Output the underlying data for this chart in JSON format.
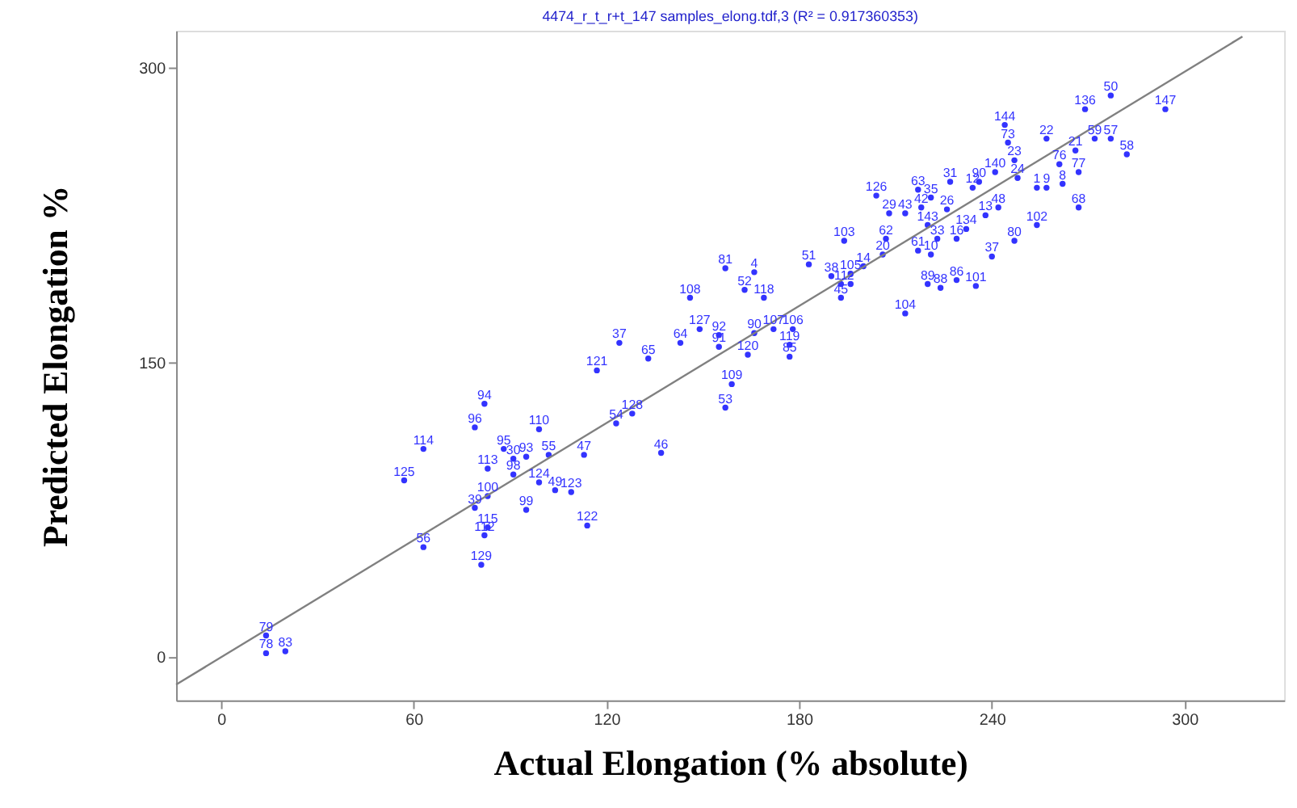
{
  "chart_data": {
    "type": "scatter",
    "title": "4474_r_t_r+t_147 samples_elong.tdf,3  (R² = 0.917360353)",
    "xlabel": "Actual Elongation (% absolute)",
    "ylabel": "Predicted Elongation %",
    "xlim": [
      -14,
      331
    ],
    "ylim": [
      -22,
      319
    ],
    "xticks": [
      0,
      60,
      120,
      180,
      240,
      300
    ],
    "yticks": [
      0,
      150,
      300
    ],
    "grid": false,
    "series": [
      {
        "color": "#3333ff",
        "marker": "circle",
        "x": [
          14,
          14,
          20,
          63,
          57,
          63,
          82,
          79,
          83,
          83,
          79,
          83,
          82,
          81,
          99,
          88,
          91,
          95,
          102,
          91,
          99,
          104,
          109,
          95,
          114,
          113,
          137,
          123,
          128,
          117,
          124,
          133,
          143,
          146,
          149,
          155,
          155,
          159,
          157,
          157,
          166,
          163,
          169,
          166,
          164,
          172,
          178,
          177,
          177,
          183,
          193,
          190,
          196,
          200,
          193,
          196,
          194,
          213,
          206,
          207,
          204,
          208,
          213,
          217,
          221,
          218,
          227,
          234,
          226,
          220,
          232,
          229,
          223,
          217,
          221,
          220,
          224,
          229,
          235,
          240,
          241,
          236,
          248,
          238,
          242,
          247,
          254,
          267,
          254,
          257,
          262,
          267,
          261,
          266,
          245,
          247,
          282,
          277,
          272,
          269,
          277,
          294,
          244,
          257
        ],
        "values": [
          11,
          2,
          3,
          56,
          90,
          106,
          129,
          117,
          96,
          82,
          76,
          66,
          62,
          47,
          116,
          106,
          101,
          102,
          103,
          93,
          89,
          85,
          84,
          75,
          67,
          103,
          104,
          119,
          124,
          146,
          160,
          152,
          160,
          183,
          167,
          164,
          158,
          139,
          127,
          198,
          196,
          187,
          183,
          165,
          154,
          167,
          167,
          159,
          153,
          200,
          183,
          194,
          195,
          199,
          190,
          190,
          212,
          175,
          205,
          213,
          235,
          226,
          226,
          238,
          234,
          229,
          242,
          239,
          228,
          220,
          218,
          213,
          213,
          207,
          205,
          190,
          188,
          192,
          189,
          204,
          247,
          242,
          244,
          225,
          229,
          212,
          220,
          229,
          239,
          239,
          241,
          247,
          251,
          258,
          262,
          253,
          256,
          264,
          264,
          279,
          286,
          279,
          271,
          264
        ]
      },
      {
        "type": "line",
        "color": "#808080",
        "x": [
          -14,
          318
        ],
        "values": [
          -14,
          316
        ]
      }
    ],
    "annotations": [
      {
        "text": "79",
        "x": 14,
        "y": 11
      },
      {
        "text": "78",
        "x": 14,
        "y": 2
      },
      {
        "text": "83",
        "x": 20,
        "y": 3
      },
      {
        "text": "56",
        "x": 63,
        "y": 56
      },
      {
        "text": "125",
        "x": 57,
        "y": 90
      },
      {
        "text": "114",
        "x": 63,
        "y": 106
      },
      {
        "text": "94",
        "x": 82,
        "y": 129
      },
      {
        "text": "96",
        "x": 79,
        "y": 117
      },
      {
        "text": "113",
        "x": 83,
        "y": 96
      },
      {
        "text": "100",
        "x": 83,
        "y": 82
      },
      {
        "text": "39",
        "x": 79,
        "y": 76
      },
      {
        "text": "115",
        "x": 83,
        "y": 66
      },
      {
        "text": "112",
        "x": 82,
        "y": 62
      },
      {
        "text": "129",
        "x": 81,
        "y": 47
      },
      {
        "text": "110",
        "x": 99,
        "y": 116
      },
      {
        "text": "95",
        "x": 88,
        "y": 106
      },
      {
        "text": "30",
        "x": 91,
        "y": 101
      },
      {
        "text": "93",
        "x": 95,
        "y": 102
      },
      {
        "text": "55",
        "x": 102,
        "y": 103
      },
      {
        "text": "98",
        "x": 91,
        "y": 93
      },
      {
        "text": "124",
        "x": 99,
        "y": 89
      },
      {
        "text": "49",
        "x": 104,
        "y": 85
      },
      {
        "text": "123",
        "x": 109,
        "y": 84
      },
      {
        "text": "99",
        "x": 95,
        "y": 75
      },
      {
        "text": "122",
        "x": 114,
        "y": 67
      },
      {
        "text": "47",
        "x": 113,
        "y": 103
      },
      {
        "text": "46",
        "x": 137,
        "y": 104
      },
      {
        "text": "54",
        "x": 123,
        "y": 119
      },
      {
        "text": "128",
        "x": 128,
        "y": 124
      },
      {
        "text": "121",
        "x": 117,
        "y": 146
      },
      {
        "text": "37",
        "x": 124,
        "y": 160
      },
      {
        "text": "65",
        "x": 133,
        "y": 152
      },
      {
        "text": "64",
        "x": 143,
        "y": 160
      },
      {
        "text": "108",
        "x": 146,
        "y": 183
      },
      {
        "text": "127",
        "x": 149,
        "y": 167
      },
      {
        "text": "92",
        "x": 155,
        "y": 164
      },
      {
        "text": "91",
        "x": 155,
        "y": 158
      },
      {
        "text": "109",
        "x": 159,
        "y": 139
      },
      {
        "text": "53",
        "x": 157,
        "y": 127
      },
      {
        "text": "81",
        "x": 157,
        "y": 198
      },
      {
        "text": "4",
        "x": 166,
        "y": 196
      },
      {
        "text": "52",
        "x": 163,
        "y": 187
      },
      {
        "text": "118",
        "x": 169,
        "y": 183
      },
      {
        "text": "90",
        "x": 166,
        "y": 165
      },
      {
        "text": "120",
        "x": 164,
        "y": 154
      },
      {
        "text": "107",
        "x": 172,
        "y": 167
      },
      {
        "text": "106",
        "x": 178,
        "y": 167
      },
      {
        "text": "119",
        "x": 177,
        "y": 159
      },
      {
        "text": "85",
        "x": 177,
        "y": 153
      },
      {
        "text": "51",
        "x": 183,
        "y": 200
      },
      {
        "text": "45",
        "x": 193,
        "y": 183
      },
      {
        "text": "38",
        "x": 190,
        "y": 194
      },
      {
        "text": "105",
        "x": 196,
        "y": 195
      },
      {
        "text": "14",
        "x": 200,
        "y": 199
      },
      {
        "text": "11",
        "x": 193,
        "y": 190
      },
      {
        "text": "2",
        "x": 196,
        "y": 190
      },
      {
        "text": "103",
        "x": 194,
        "y": 212
      },
      {
        "text": "104",
        "x": 213,
        "y": 175
      },
      {
        "text": "20",
        "x": 206,
        "y": 205
      },
      {
        "text": "62",
        "x": 207,
        "y": 213
      },
      {
        "text": "126",
        "x": 204,
        "y": 235
      },
      {
        "text": "29",
        "x": 208,
        "y": 226
      },
      {
        "text": "43",
        "x": 213,
        "y": 226
      },
      {
        "text": "63",
        "x": 217,
        "y": 238
      },
      {
        "text": "35",
        "x": 221,
        "y": 234
      },
      {
        "text": "42",
        "x": 218,
        "y": 229
      },
      {
        "text": "31",
        "x": 227,
        "y": 242
      },
      {
        "text": "12",
        "x": 234,
        "y": 239
      },
      {
        "text": "26",
        "x": 226,
        "y": 228
      },
      {
        "text": "143",
        "x": 220,
        "y": 220
      },
      {
        "text": "134",
        "x": 232,
        "y": 218
      },
      {
        "text": "16",
        "x": 229,
        "y": 213
      },
      {
        "text": "33",
        "x": 223,
        "y": 213
      },
      {
        "text": "61",
        "x": 217,
        "y": 207
      },
      {
        "text": "10",
        "x": 221,
        "y": 205
      },
      {
        "text": "89",
        "x": 220,
        "y": 190
      },
      {
        "text": "88",
        "x": 224,
        "y": 188
      },
      {
        "text": "86",
        "x": 229,
        "y": 192
      },
      {
        "text": "101",
        "x": 235,
        "y": 189
      },
      {
        "text": "37",
        "x": 240,
        "y": 204
      },
      {
        "text": "140",
        "x": 241,
        "y": 247
      },
      {
        "text": "90",
        "x": 236,
        "y": 242
      },
      {
        "text": "24",
        "x": 248,
        "y": 244
      },
      {
        "text": "13",
        "x": 238,
        "y": 225
      },
      {
        "text": "48",
        "x": 242,
        "y": 229
      },
      {
        "text": "80",
        "x": 247,
        "y": 212
      },
      {
        "text": "102",
        "x": 254,
        "y": 220
      },
      {
        "text": "68",
        "x": 267,
        "y": 229
      },
      {
        "text": "1",
        "x": 254,
        "y": 239
      },
      {
        "text": "9",
        "x": 257,
        "y": 239
      },
      {
        "text": "8",
        "x": 262,
        "y": 241
      },
      {
        "text": "77",
        "x": 267,
        "y": 247
      },
      {
        "text": "76",
        "x": 261,
        "y": 251
      },
      {
        "text": "21",
        "x": 266,
        "y": 258
      },
      {
        "text": "73",
        "x": 245,
        "y": 262
      },
      {
        "text": "23",
        "x": 247,
        "y": 253
      },
      {
        "text": "58",
        "x": 282,
        "y": 256
      },
      {
        "text": "57",
        "x": 277,
        "y": 264
      },
      {
        "text": "59",
        "x": 272,
        "y": 264
      },
      {
        "text": "136",
        "x": 269,
        "y": 279
      },
      {
        "text": "50",
        "x": 277,
        "y": 286
      },
      {
        "text": "147",
        "x": 294,
        "y": 279
      },
      {
        "text": "144",
        "x": 244,
        "y": 271
      },
      {
        "text": "22",
        "x": 257,
        "y": 264
      }
    ]
  }
}
